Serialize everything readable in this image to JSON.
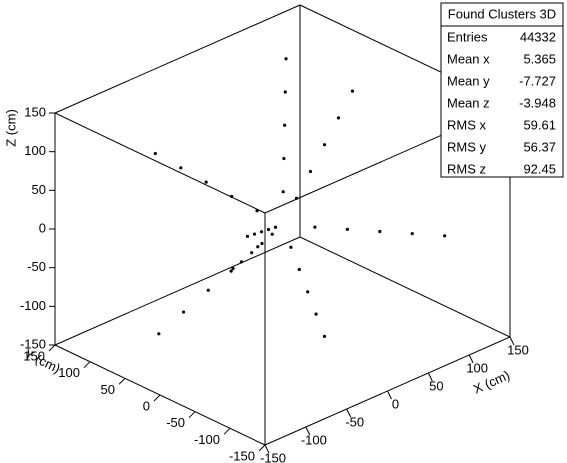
{
  "chart_data": {
    "type": "scatter3d",
    "stats_title": "Found Clusters 3D",
    "stats": [
      {
        "name": "Entries",
        "value": 44332
      },
      {
        "name": "Mean x",
        "value": 5.365
      },
      {
        "name": "Mean y",
        "value": -7.727
      },
      {
        "name": "Mean z",
        "value": -3.948
      },
      {
        "name": "RMS x",
        "value": 59.61
      },
      {
        "name": "RMS y",
        "value": 56.37
      },
      {
        "name": "RMS z",
        "value": 92.45
      }
    ],
    "xlabel": "X (cm)",
    "ylabel": "Y (cm)",
    "zlabel": "Z (cm)",
    "xlim": [
      -150,
      150
    ],
    "ylim": [
      -150,
      150
    ],
    "zlim": [
      -150,
      150
    ],
    "xticks": [
      -150,
      -100,
      -50,
      0,
      50,
      100,
      150
    ],
    "yticks": [
      -150,
      -100,
      -50,
      0,
      50,
      100,
      150
    ],
    "zticks": [
      -150,
      -100,
      -50,
      0,
      50,
      100,
      150
    ],
    "series": [
      {
        "color": "#000000",
        "x": [
          24,
          48,
          72,
          96,
          120,
          -20,
          -40,
          -60,
          -80,
          -100,
          26,
          52,
          78,
          104,
          130,
          -24,
          -48,
          -72,
          -96,
          -120,
          8,
          16,
          24,
          32,
          40,
          -12,
          -24,
          -36,
          -48,
          -60,
          18,
          36,
          54,
          72,
          90,
          -26,
          -52,
          -78,
          -104,
          -130
        ],
        "y": [
          8,
          16,
          24,
          32,
          40,
          12,
          24,
          36,
          48,
          60,
          -16,
          -32,
          -48,
          -64,
          -80,
          -18,
          -36,
          -54,
          -72,
          -90,
          24,
          48,
          72,
          96,
          120,
          -26,
          -52,
          -78,
          -104,
          -130,
          20,
          40,
          60,
          80,
          100,
          6,
          12,
          18,
          24,
          30
        ],
        "z": [
          20,
          40,
          60,
          80,
          100,
          -24,
          -48,
          -72,
          -96,
          -120,
          -8,
          -16,
          -24,
          -32,
          -40,
          16,
          32,
          48,
          64,
          80,
          -26,
          -52,
          -78,
          -104,
          -130,
          -12,
          -24,
          -36,
          -48,
          -60,
          26,
          52,
          78,
          104,
          130,
          28,
          56,
          84,
          112,
          140
        ]
      }
    ]
  }
}
